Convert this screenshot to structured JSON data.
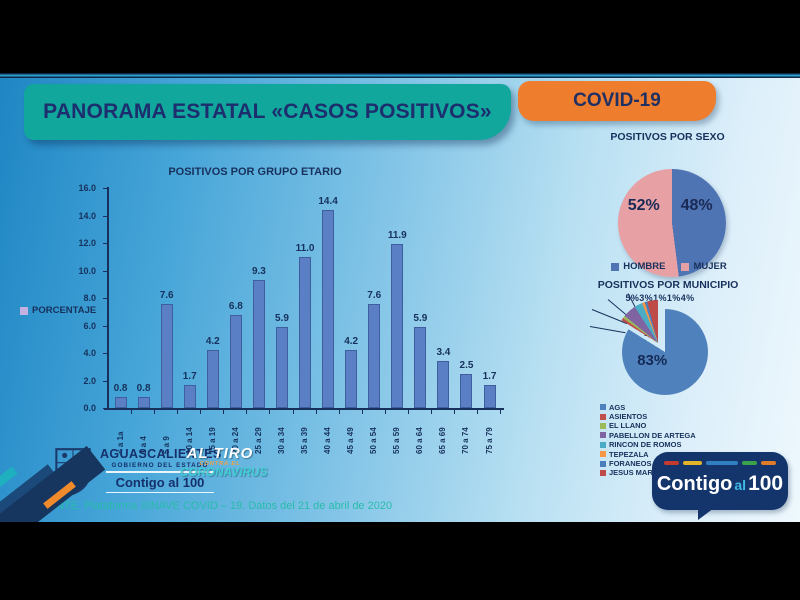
{
  "page": {
    "title_banner": "PANORAMA ESTATAL «CASOS POSITIVOS»",
    "covid_badge": "COVID-19"
  },
  "chart_data": [
    {
      "id": "positivos-por-grupo-etario",
      "type": "bar",
      "title": "POSITIVOS POR GRUPO ETARIO",
      "legend": [
        "PORCENTAJE"
      ],
      "legend_swatch_color": "#c3b1e0",
      "categories": [
        "< a 1a",
        "1 a 4",
        "5 a 9",
        "10 a 14",
        "15 a 19",
        "20 a 24",
        "25 a 29",
        "30 a 34",
        "35 a 39",
        "40 a 44",
        "45 a 49",
        "50 a 54",
        "55 a 59",
        "60 a 64",
        "65 a 69",
        "70 a 74",
        "75 a 79"
      ],
      "values": [
        0.8,
        0.8,
        7.6,
        1.7,
        4.2,
        6.8,
        9.3,
        5.9,
        11.0,
        14.4,
        4.2,
        7.6,
        11.9,
        5.9,
        3.4,
        2.5,
        1.7
      ],
      "value_labels": [
        "0.8",
        "0.8",
        "7.6",
        "1.7",
        "4.2",
        "6.8",
        "9.3",
        "5.9",
        "11.0",
        "14.4",
        "4.2",
        "7.6",
        "11.9",
        "5.9",
        "3.4",
        "2.5",
        "1.7"
      ],
      "xlabel": "",
      "ylabel": "",
      "ylim": [
        0,
        16
      ],
      "ytick_step": 2,
      "bar_color": "#5b7fc4",
      "grid": false,
      "legend_position": "left"
    },
    {
      "id": "positivos-por-sexo",
      "type": "pie",
      "title": "POSITIVOS POR SEXO",
      "slices": [
        {
          "label": "HOMBRE",
          "value": 48,
          "display": "48%",
          "color": "#4f74b4"
        },
        {
          "label": "MUJER",
          "value": 52,
          "display": "52%",
          "color": "#e7a0a4"
        }
      ],
      "legend_position": "bottom"
    },
    {
      "id": "positivos-por-municipio",
      "type": "pie",
      "title": "POSITIVOS POR MUNICIPIO",
      "slices": [
        {
          "label": "AGS",
          "value": 83,
          "display": "83%",
          "color": "#4f81bd"
        },
        {
          "label": "ASIENTOS",
          "value": 1,
          "display": "1%",
          "color": "#c0504d"
        },
        {
          "label": "EL LLANO",
          "value": 1,
          "display": "1%",
          "color": "#9bbb59"
        },
        {
          "label": "PABELLON DE ARTEGA",
          "value": 5,
          "display": "5%",
          "color": "#8064a2"
        },
        {
          "label": "RINCON DE ROMOS",
          "value": 3,
          "display": "3%",
          "color": "#4bacc6"
        },
        {
          "label": "TEPEZALA",
          "value": 1,
          "display": "1%",
          "color": "#f79646"
        },
        {
          "label": "FORANEOS",
          "value": 1,
          "display": "1%",
          "color": "#4a7ebb"
        },
        {
          "label": "JESUS MARIA",
          "value": 4,
          "display": "4%",
          "color": "#be4b48"
        }
      ],
      "top_labels_row": "5%3%1%1%4%",
      "callout_labels": [
        "1%",
        "1%"
      ],
      "legend_position": "bottom"
    }
  ],
  "footer": {
    "gov_logo": {
      "name": "AGUASCALIENTES",
      "subtitle": "GOBIERNO DEL ESTADO",
      "slogan": "Contigo al 100"
    },
    "altiro": {
      "line1": "AL TIRO",
      "middle": "CONTRA EL",
      "line2": "CORONAVIRUS"
    },
    "source": "FUENTE. Plataforma SINAVE COVID – 19. Datos del 21 de abril de 2020",
    "contigo_bubble": {
      "contigo": "Contigo",
      "al": "al",
      "hundred": "100",
      "dash_colors": [
        "#c23b2e",
        "#e2b229",
        "#2f7fc1",
        "#3ba34a",
        "#e07b2a"
      ],
      "dash_widths": [
        16,
        20,
        34,
        16,
        16
      ]
    }
  }
}
